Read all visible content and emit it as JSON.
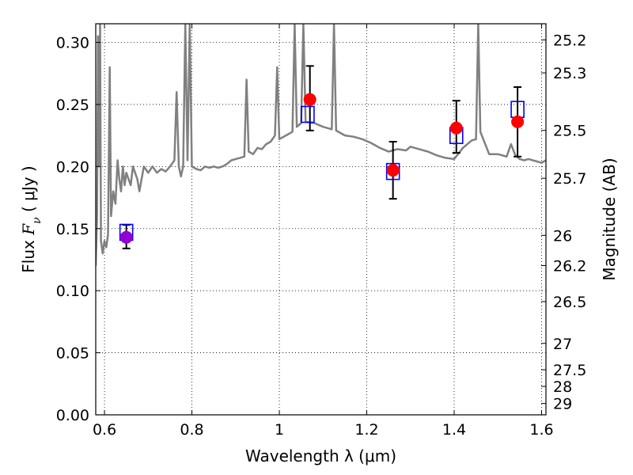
{
  "chart_data": {
    "type": "scatter",
    "title": "",
    "xlabel": "Wavelength  λ (μm)",
    "ylabel": {
      "prefix": "Flux  ",
      "symbol": "F",
      "subscript": "ν",
      "suffix": "  ( μJy )"
    },
    "y2label": "Magnitude (AB)",
    "xlim": [
      0.58,
      1.61
    ],
    "ylim": [
      0.0,
      0.315
    ],
    "grid": true,
    "x_ticks": [
      0.6,
      0.8,
      1.0,
      1.2,
      1.4,
      1.6
    ],
    "x_tick_labels": [
      "0.6",
      "0.8",
      "1",
      "1.2",
      "1.4",
      "1.6"
    ],
    "y_ticks": [
      0.0,
      0.05,
      0.1,
      0.15,
      0.2,
      0.25,
      0.3
    ],
    "y_tick_labels": [
      "0.00",
      "0.05",
      "0.10",
      "0.15",
      "0.20",
      "0.25",
      "0.30"
    ],
    "y2_tick_labels": [
      "25.2",
      "25.3",
      "25.5",
      "25.7",
      "26",
      "26.2",
      "26.5",
      "27",
      "27.5",
      "28",
      "29"
    ],
    "y2_tick_values": [
      25.2,
      25.3,
      25.5,
      25.7,
      26.0,
      26.2,
      26.5,
      27.0,
      27.5,
      28.0,
      29.0
    ],
    "colors": {
      "spectrum": "#808080",
      "model_points": "#0000ff",
      "observed_points": "#ff0000",
      "highlight_point": "#9400d3",
      "errorbar": "#000000",
      "grid": "#000000"
    },
    "series": [
      {
        "kind": "spectrum",
        "points": [
          [
            0.58,
            0.12
          ],
          [
            0.583,
            0.16
          ],
          [
            0.585,
            0.305
          ],
          [
            0.587,
            0.2
          ],
          [
            0.59,
            0.315
          ],
          [
            0.592,
            0.14
          ],
          [
            0.596,
            0.13
          ],
          [
            0.6,
            0.14
          ],
          [
            0.604,
            0.135
          ],
          [
            0.608,
            0.145
          ],
          [
            0.612,
            0.28
          ],
          [
            0.615,
            0.16
          ],
          [
            0.62,
            0.18
          ],
          [
            0.625,
            0.17
          ],
          [
            0.63,
            0.205
          ],
          [
            0.634,
            0.19
          ],
          [
            0.638,
            0.18
          ],
          [
            0.642,
            0.2
          ],
          [
            0.646,
            0.185
          ],
          [
            0.65,
            0.195
          ],
          [
            0.655,
            0.19
          ],
          [
            0.66,
            0.185
          ],
          [
            0.665,
            0.2
          ],
          [
            0.67,
            0.195
          ],
          [
            0.675,
            0.19
          ],
          [
            0.68,
            0.18
          ],
          [
            0.685,
            0.19
          ],
          [
            0.69,
            0.2
          ],
          [
            0.7,
            0.195
          ],
          [
            0.71,
            0.2
          ],
          [
            0.72,
            0.195
          ],
          [
            0.73,
            0.198
          ],
          [
            0.74,
            0.196
          ],
          [
            0.75,
            0.2
          ],
          [
            0.76,
            0.205
          ],
          [
            0.765,
            0.26
          ],
          [
            0.77,
            0.2
          ],
          [
            0.775,
            0.192
          ],
          [
            0.78,
            0.2
          ],
          [
            0.785,
            0.315
          ],
          [
            0.79,
            0.205
          ],
          [
            0.795,
            0.315
          ],
          [
            0.8,
            0.2
          ],
          [
            0.81,
            0.198
          ],
          [
            0.82,
            0.197
          ],
          [
            0.83,
            0.2
          ],
          [
            0.84,
            0.199
          ],
          [
            0.85,
            0.2
          ],
          [
            0.86,
            0.199
          ],
          [
            0.87,
            0.2
          ],
          [
            0.88,
            0.202
          ],
          [
            0.89,
            0.205
          ],
          [
            0.9,
            0.206
          ],
          [
            0.91,
            0.207
          ],
          [
            0.92,
            0.208
          ],
          [
            0.925,
            0.27
          ],
          [
            0.93,
            0.212
          ],
          [
            0.94,
            0.21
          ],
          [
            0.95,
            0.215
          ],
          [
            0.96,
            0.214
          ],
          [
            0.97,
            0.218
          ],
          [
            0.98,
            0.22
          ],
          [
            0.99,
            0.225
          ],
          [
            0.995,
            0.28
          ],
          [
            1.0,
            0.222
          ],
          [
            1.01,
            0.224
          ],
          [
            1.02,
            0.226
          ],
          [
            1.03,
            0.228
          ],
          [
            1.035,
            0.315
          ],
          [
            1.04,
            0.232
          ],
          [
            1.05,
            0.235
          ],
          [
            1.055,
            0.315
          ],
          [
            1.06,
            0.236
          ],
          [
            1.08,
            0.235
          ],
          [
            1.1,
            0.232
          ],
          [
            1.12,
            0.23
          ],
          [
            1.125,
            0.315
          ],
          [
            1.13,
            0.229
          ],
          [
            1.15,
            0.225
          ],
          [
            1.17,
            0.224
          ],
          [
            1.19,
            0.222
          ],
          [
            1.21,
            0.219
          ],
          [
            1.23,
            0.215
          ],
          [
            1.25,
            0.212
          ],
          [
            1.27,
            0.214
          ],
          [
            1.29,
            0.213
          ],
          [
            1.3,
            0.216
          ],
          [
            1.32,
            0.214
          ],
          [
            1.34,
            0.212
          ],
          [
            1.36,
            0.209
          ],
          [
            1.38,
            0.207
          ],
          [
            1.4,
            0.206
          ],
          [
            1.42,
            0.215
          ],
          [
            1.44,
            0.221
          ],
          [
            1.45,
            0.222
          ],
          [
            1.455,
            0.315
          ],
          [
            1.46,
            0.228
          ],
          [
            1.48,
            0.21
          ],
          [
            1.5,
            0.21
          ],
          [
            1.52,
            0.208
          ],
          [
            1.53,
            0.218
          ],
          [
            1.54,
            0.209
          ],
          [
            1.55,
            0.206
          ],
          [
            1.56,
            0.205
          ],
          [
            1.57,
            0.206
          ],
          [
            1.59,
            0.204
          ],
          [
            1.6,
            0.203
          ],
          [
            1.61,
            0.205
          ]
        ]
      },
      {
        "kind": "model",
        "marker": "open-square",
        "x": [
          0.65,
          1.065,
          1.26,
          1.405,
          1.545
        ],
        "y": [
          0.147,
          0.242,
          0.196,
          0.225,
          0.246
        ]
      },
      {
        "kind": "observed",
        "marker": "filled-circle",
        "x": [
          0.65,
          1.07,
          1.26,
          1.405,
          1.545
        ],
        "y": [
          0.143,
          0.254,
          0.197,
          0.231,
          0.236
        ],
        "yerr_low": [
          0.134,
          0.229,
          0.174,
          0.211,
          0.208
        ],
        "yerr_high": [
          0.153,
          0.281,
          0.22,
          0.253,
          0.264
        ]
      }
    ]
  }
}
